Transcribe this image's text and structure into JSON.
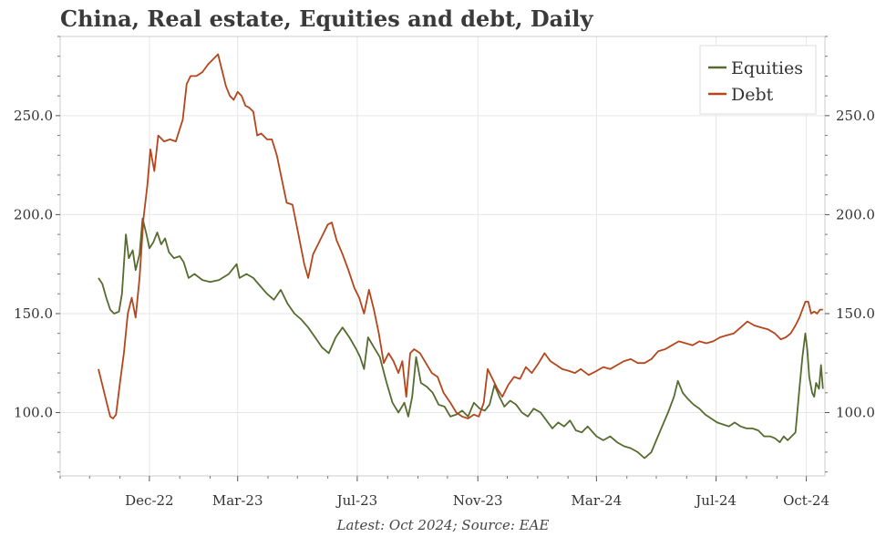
{
  "title": "China, Real estate, Equities and debt, Daily",
  "footer": "Latest: Oct 2024; Source: EAE",
  "chart_data": {
    "type": "line",
    "title": "China, Real estate, Equities and debt, Daily",
    "xlabel": "",
    "ylabel": "",
    "ylim": [
      68,
      290
    ],
    "x_range": [
      "2022-09-01",
      "2024-10-20"
    ],
    "x_ticks": [
      {
        "date": "2022-12-01",
        "label": "Dec-22"
      },
      {
        "date": "2023-03-01",
        "label": "Mar-23"
      },
      {
        "date": "2023-07-01",
        "label": "Jul-23"
      },
      {
        "date": "2023-11-01",
        "label": "Nov-23"
      },
      {
        "date": "2024-03-01",
        "label": "Mar-24"
      },
      {
        "date": "2024-07-01",
        "label": "Jul-24"
      },
      {
        "date": "2024-10-01",
        "label": "Oct-24"
      }
    ],
    "y_ticks": [
      100,
      150,
      200,
      250
    ],
    "y_tick_labels": [
      "100.0",
      "150.0",
      "200.0",
      "250.0"
    ],
    "grid": true,
    "legend_position": "top-right",
    "series": [
      {
        "name": "Equities",
        "color": "#556b2f",
        "points": [
          [
            "2022-10-10",
            168
          ],
          [
            "2022-10-14",
            165
          ],
          [
            "2022-10-18",
            158
          ],
          [
            "2022-10-22",
            152
          ],
          [
            "2022-10-26",
            150
          ],
          [
            "2022-10-31",
            151
          ],
          [
            "2022-11-03",
            160
          ],
          [
            "2022-11-07",
            190
          ],
          [
            "2022-11-10",
            178
          ],
          [
            "2022-11-14",
            182
          ],
          [
            "2022-11-17",
            172
          ],
          [
            "2022-11-21",
            180
          ],
          [
            "2022-11-24",
            198
          ],
          [
            "2022-11-28",
            190
          ],
          [
            "2022-12-01",
            183
          ],
          [
            "2022-12-05",
            186
          ],
          [
            "2022-12-09",
            191
          ],
          [
            "2022-12-13",
            185
          ],
          [
            "2022-12-17",
            188
          ],
          [
            "2022-12-21",
            181
          ],
          [
            "2022-12-26",
            178
          ],
          [
            "2023-01-01",
            179
          ],
          [
            "2023-01-05",
            176
          ],
          [
            "2023-01-10",
            168
          ],
          [
            "2023-01-16",
            170
          ],
          [
            "2023-01-24",
            167
          ],
          [
            "2023-02-01",
            166
          ],
          [
            "2023-02-10",
            167
          ],
          [
            "2023-02-20",
            170
          ],
          [
            "2023-02-28",
            175
          ],
          [
            "2023-03-03",
            168
          ],
          [
            "2023-03-10",
            170
          ],
          [
            "2023-03-17",
            168
          ],
          [
            "2023-03-24",
            164
          ],
          [
            "2023-03-31",
            160
          ],
          [
            "2023-04-07",
            157
          ],
          [
            "2023-04-14",
            162
          ],
          [
            "2023-04-21",
            155
          ],
          [
            "2023-04-28",
            150
          ],
          [
            "2023-05-05",
            147
          ],
          [
            "2023-05-12",
            143
          ],
          [
            "2023-05-19",
            138
          ],
          [
            "2023-05-26",
            133
          ],
          [
            "2023-06-02",
            130
          ],
          [
            "2023-06-09",
            138
          ],
          [
            "2023-06-16",
            143
          ],
          [
            "2023-06-23",
            138
          ],
          [
            "2023-06-30",
            132
          ],
          [
            "2023-07-04",
            128
          ],
          [
            "2023-07-08",
            122
          ],
          [
            "2023-07-12",
            138
          ],
          [
            "2023-07-18",
            133
          ],
          [
            "2023-07-24",
            128
          ],
          [
            "2023-07-31",
            115
          ],
          [
            "2023-08-06",
            105
          ],
          [
            "2023-08-12",
            100
          ],
          [
            "2023-08-18",
            105
          ],
          [
            "2023-08-22",
            98
          ],
          [
            "2023-08-26",
            108
          ],
          [
            "2023-08-30",
            128
          ],
          [
            "2023-09-04",
            115
          ],
          [
            "2023-09-10",
            113
          ],
          [
            "2023-09-16",
            110
          ],
          [
            "2023-09-22",
            104
          ],
          [
            "2023-09-28",
            103
          ],
          [
            "2023-10-04",
            98
          ],
          [
            "2023-10-10",
            99
          ],
          [
            "2023-10-16",
            101
          ],
          [
            "2023-10-22",
            98
          ],
          [
            "2023-10-28",
            105
          ],
          [
            "2023-11-03",
            102
          ],
          [
            "2023-11-08",
            101
          ],
          [
            "2023-11-13",
            104
          ],
          [
            "2023-11-18",
            114
          ],
          [
            "2023-11-23",
            108
          ],
          [
            "2023-11-28",
            103
          ],
          [
            "2023-12-04",
            106
          ],
          [
            "2023-12-10",
            104
          ],
          [
            "2023-12-16",
            100
          ],
          [
            "2023-12-22",
            98
          ],
          [
            "2023-12-28",
            102
          ],
          [
            "2024-01-04",
            100
          ],
          [
            "2024-01-10",
            96
          ],
          [
            "2024-01-16",
            92
          ],
          [
            "2024-01-22",
            95
          ],
          [
            "2024-01-28",
            93
          ],
          [
            "2024-02-03",
            96
          ],
          [
            "2024-02-09",
            91
          ],
          [
            "2024-02-15",
            90
          ],
          [
            "2024-02-21",
            93
          ],
          [
            "2024-03-01",
            88
          ],
          [
            "2024-03-08",
            86
          ],
          [
            "2024-03-15",
            88
          ],
          [
            "2024-03-22",
            85
          ],
          [
            "2024-03-29",
            83
          ],
          [
            "2024-04-05",
            82
          ],
          [
            "2024-04-12",
            80
          ],
          [
            "2024-04-19",
            77
          ],
          [
            "2024-04-26",
            80
          ],
          [
            "2024-05-01",
            86
          ],
          [
            "2024-05-07",
            93
          ],
          [
            "2024-05-13",
            100
          ],
          [
            "2024-05-19",
            108
          ],
          [
            "2024-05-23",
            116
          ],
          [
            "2024-05-28",
            110
          ],
          [
            "2024-06-02",
            107
          ],
          [
            "2024-06-08",
            104
          ],
          [
            "2024-06-14",
            102
          ],
          [
            "2024-06-20",
            99
          ],
          [
            "2024-06-26",
            97
          ],
          [
            "2024-07-02",
            95
          ],
          [
            "2024-07-08",
            94
          ],
          [
            "2024-07-14",
            93
          ],
          [
            "2024-07-20",
            95
          ],
          [
            "2024-07-26",
            93
          ],
          [
            "2024-08-01",
            92
          ],
          [
            "2024-08-07",
            92
          ],
          [
            "2024-08-13",
            91
          ],
          [
            "2024-08-19",
            88
          ],
          [
            "2024-08-25",
            88
          ],
          [
            "2024-08-30",
            87
          ],
          [
            "2024-09-04",
            85
          ],
          [
            "2024-09-08",
            88
          ],
          [
            "2024-09-12",
            86
          ],
          [
            "2024-09-16",
            88
          ],
          [
            "2024-09-20",
            90
          ],
          [
            "2024-09-24",
            112
          ],
          [
            "2024-09-27",
            128
          ],
          [
            "2024-09-30",
            140
          ],
          [
            "2024-10-02",
            132
          ],
          [
            "2024-10-04",
            118
          ],
          [
            "2024-10-07",
            110
          ],
          [
            "2024-10-09",
            108
          ],
          [
            "2024-10-11",
            115
          ],
          [
            "2024-10-14",
            112
          ],
          [
            "2024-10-16",
            124
          ],
          [
            "2024-10-18",
            112
          ]
        ]
      },
      {
        "name": "Debt",
        "color": "#b5451b",
        "points": [
          [
            "2022-10-10",
            122
          ],
          [
            "2022-10-13",
            116
          ],
          [
            "2022-10-16",
            110
          ],
          [
            "2022-10-19",
            104
          ],
          [
            "2022-10-22",
            98
          ],
          [
            "2022-10-25",
            97
          ],
          [
            "2022-10-28",
            99
          ],
          [
            "2022-11-01",
            115
          ],
          [
            "2022-11-05",
            130
          ],
          [
            "2022-11-09",
            150
          ],
          [
            "2022-11-13",
            158
          ],
          [
            "2022-11-17",
            148
          ],
          [
            "2022-11-21",
            168
          ],
          [
            "2022-11-25",
            198
          ],
          [
            "2022-11-29",
            215
          ],
          [
            "2022-12-02",
            233
          ],
          [
            "2022-12-06",
            222
          ],
          [
            "2022-12-10",
            240
          ],
          [
            "2022-12-16",
            237
          ],
          [
            "2022-12-22",
            238
          ],
          [
            "2022-12-28",
            237
          ],
          [
            "2023-01-04",
            248
          ],
          [
            "2023-01-08",
            266
          ],
          [
            "2023-01-12",
            270
          ],
          [
            "2023-01-18",
            270
          ],
          [
            "2023-01-24",
            272
          ],
          [
            "2023-01-30",
            276
          ],
          [
            "2023-02-05",
            279
          ],
          [
            "2023-02-09",
            281
          ],
          [
            "2023-02-13",
            273
          ],
          [
            "2023-02-17",
            265
          ],
          [
            "2023-02-21",
            260
          ],
          [
            "2023-02-25",
            258
          ],
          [
            "2023-03-01",
            262
          ],
          [
            "2023-03-05",
            260
          ],
          [
            "2023-03-09",
            255
          ],
          [
            "2023-03-13",
            254
          ],
          [
            "2023-03-17",
            252
          ],
          [
            "2023-03-21",
            240
          ],
          [
            "2023-03-25",
            241
          ],
          [
            "2023-03-31",
            238
          ],
          [
            "2023-04-05",
            238
          ],
          [
            "2023-04-10",
            230
          ],
          [
            "2023-04-15",
            218
          ],
          [
            "2023-04-20",
            206
          ],
          [
            "2023-04-26",
            205
          ],
          [
            "2023-05-02",
            190
          ],
          [
            "2023-05-08",
            175
          ],
          [
            "2023-05-12",
            168
          ],
          [
            "2023-05-17",
            180
          ],
          [
            "2023-05-22",
            185
          ],
          [
            "2023-05-27",
            190
          ],
          [
            "2023-06-01",
            195
          ],
          [
            "2023-06-05",
            196
          ],
          [
            "2023-06-10",
            187
          ],
          [
            "2023-06-16",
            180
          ],
          [
            "2023-06-22",
            172
          ],
          [
            "2023-06-28",
            163
          ],
          [
            "2023-07-03",
            158
          ],
          [
            "2023-07-08",
            150
          ],
          [
            "2023-07-13",
            162
          ],
          [
            "2023-07-18",
            152
          ],
          [
            "2023-07-23",
            140
          ],
          [
            "2023-07-28",
            125
          ],
          [
            "2023-08-02",
            130
          ],
          [
            "2023-08-07",
            126
          ],
          [
            "2023-08-12",
            120
          ],
          [
            "2023-08-16",
            126
          ],
          [
            "2023-08-20",
            108
          ],
          [
            "2023-08-24",
            130
          ],
          [
            "2023-08-28",
            132
          ],
          [
            "2023-09-03",
            130
          ],
          [
            "2023-09-09",
            125
          ],
          [
            "2023-09-15",
            120
          ],
          [
            "2023-09-21",
            118
          ],
          [
            "2023-09-27",
            110
          ],
          [
            "2023-10-04",
            105
          ],
          [
            "2023-10-10",
            100
          ],
          [
            "2023-10-16",
            98
          ],
          [
            "2023-10-22",
            97
          ],
          [
            "2023-10-28",
            99
          ],
          [
            "2023-11-02",
            98
          ],
          [
            "2023-11-07",
            105
          ],
          [
            "2023-11-11",
            122
          ],
          [
            "2023-11-16",
            117
          ],
          [
            "2023-11-21",
            112
          ],
          [
            "2023-11-26",
            108
          ],
          [
            "2023-12-02",
            114
          ],
          [
            "2023-12-08",
            118
          ],
          [
            "2023-12-14",
            117
          ],
          [
            "2023-12-20",
            123
          ],
          [
            "2023-12-26",
            120
          ],
          [
            "2024-01-02",
            125
          ],
          [
            "2024-01-08",
            130
          ],
          [
            "2024-01-14",
            126
          ],
          [
            "2024-01-20",
            124
          ],
          [
            "2024-01-26",
            122
          ],
          [
            "2024-02-02",
            121
          ],
          [
            "2024-02-08",
            120
          ],
          [
            "2024-02-14",
            122
          ],
          [
            "2024-02-22",
            119
          ],
          [
            "2024-03-01",
            121
          ],
          [
            "2024-03-08",
            123
          ],
          [
            "2024-03-15",
            122
          ],
          [
            "2024-03-22",
            124
          ],
          [
            "2024-03-29",
            126
          ],
          [
            "2024-04-05",
            127
          ],
          [
            "2024-04-12",
            125
          ],
          [
            "2024-04-19",
            125
          ],
          [
            "2024-04-26",
            127
          ],
          [
            "2024-05-03",
            131
          ],
          [
            "2024-05-10",
            132
          ],
          [
            "2024-05-17",
            134
          ],
          [
            "2024-05-24",
            136
          ],
          [
            "2024-05-31",
            135
          ],
          [
            "2024-06-07",
            134
          ],
          [
            "2024-06-14",
            136
          ],
          [
            "2024-06-21",
            135
          ],
          [
            "2024-06-28",
            136
          ],
          [
            "2024-07-05",
            138
          ],
          [
            "2024-07-12",
            139
          ],
          [
            "2024-07-19",
            140
          ],
          [
            "2024-07-26",
            143
          ],
          [
            "2024-08-02",
            146
          ],
          [
            "2024-08-09",
            144
          ],
          [
            "2024-08-16",
            143
          ],
          [
            "2024-08-23",
            142
          ],
          [
            "2024-08-30",
            140
          ],
          [
            "2024-09-05",
            137
          ],
          [
            "2024-09-10",
            138
          ],
          [
            "2024-09-15",
            140
          ],
          [
            "2024-09-20",
            144
          ],
          [
            "2024-09-24",
            148
          ],
          [
            "2024-09-27",
            152
          ],
          [
            "2024-09-30",
            156
          ],
          [
            "2024-10-03",
            156
          ],
          [
            "2024-10-06",
            150
          ],
          [
            "2024-10-09",
            151
          ],
          [
            "2024-10-12",
            150
          ],
          [
            "2024-10-15",
            152
          ],
          [
            "2024-10-18",
            152
          ]
        ]
      }
    ]
  }
}
